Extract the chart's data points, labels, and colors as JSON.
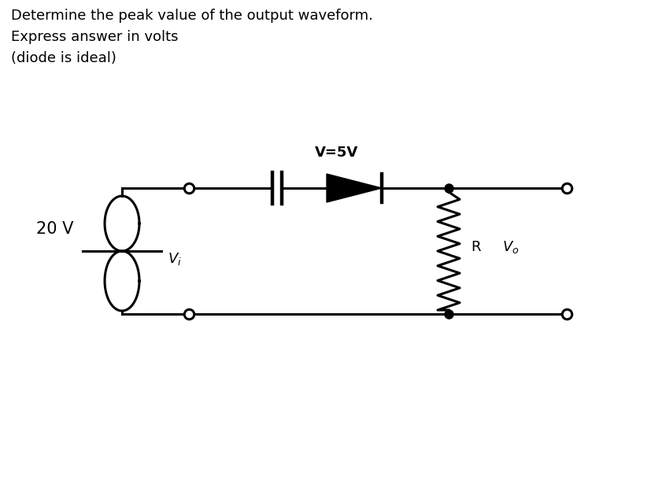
{
  "title_lines": [
    "Determine the peak value of the output waveform.",
    "Express answer in volts",
    "(diode is ideal)"
  ],
  "bg_color": "#ffffff",
  "text_color": "#000000",
  "line_color": "#000000",
  "label_V5V": "V=5V",
  "label_20V": "20 V",
  "label_R": "R",
  "label_Vo": "V_o",
  "label_Vi": "V_i",
  "figsize": [
    8.28,
    6.29
  ],
  "dpi": 100
}
